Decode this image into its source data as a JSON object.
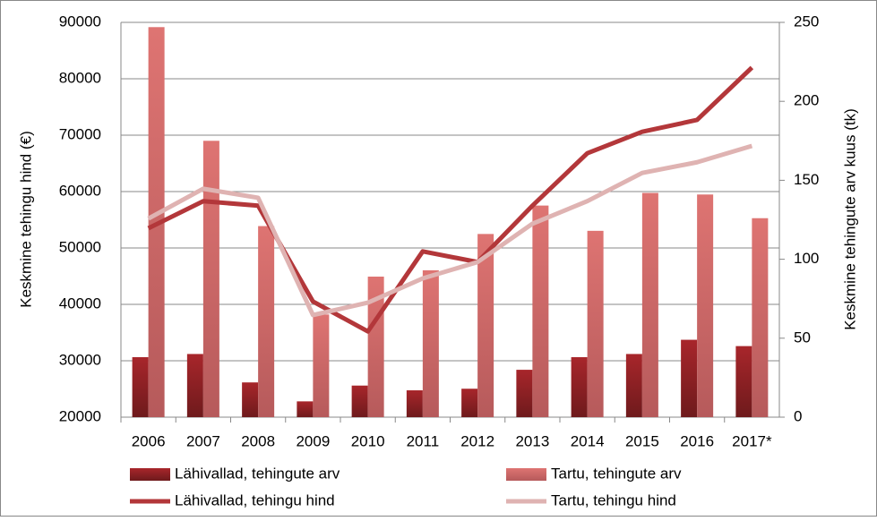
{
  "chart_data": {
    "type": "combo",
    "y_label": "Keskmine tehingu hind (€)",
    "y2_label": "Keskmine tehingute arv kuus (tk)",
    "categories": [
      "2006",
      "2007",
      "2008",
      "2009",
      "2010",
      "2011",
      "2012",
      "2013",
      "2014",
      "2015",
      "2016",
      "2017*"
    ],
    "ylim": [
      20000,
      90000
    ],
    "yticks": [
      20000,
      30000,
      40000,
      50000,
      60000,
      70000,
      80000,
      90000
    ],
    "y2lim": [
      0,
      250
    ],
    "y2ticks": [
      0,
      50,
      100,
      150,
      200,
      250
    ],
    "grid": true,
    "series": [
      {
        "name": "Lähivallad, tehingute arv",
        "type": "bar",
        "axis": "y2",
        "color": "#9b2226",
        "values": [
          38,
          40,
          22,
          10,
          20,
          17,
          18,
          30,
          38,
          40,
          49,
          45
        ]
      },
      {
        "name": "Tartu, tehingute arv",
        "type": "bar",
        "axis": "y2",
        "color": "#d8706f",
        "values": [
          247,
          175,
          121,
          65,
          89,
          93,
          116,
          134,
          118,
          142,
          141,
          126
        ]
      },
      {
        "name": "Lähivallad, tehingu hind",
        "type": "line",
        "color": "#b3373a",
        "values": [
          53500,
          58300,
          57500,
          40500,
          35200,
          49400,
          47500,
          57500,
          66800,
          70600,
          72700,
          82000
        ]
      },
      {
        "name": "Tartu, tehingu hind",
        "type": "line",
        "color": "#dfb3b2",
        "values": [
          55200,
          60500,
          58900,
          38100,
          40300,
          44600,
          47500,
          54300,
          58300,
          63300,
          65200,
          68100
        ]
      }
    ]
  }
}
